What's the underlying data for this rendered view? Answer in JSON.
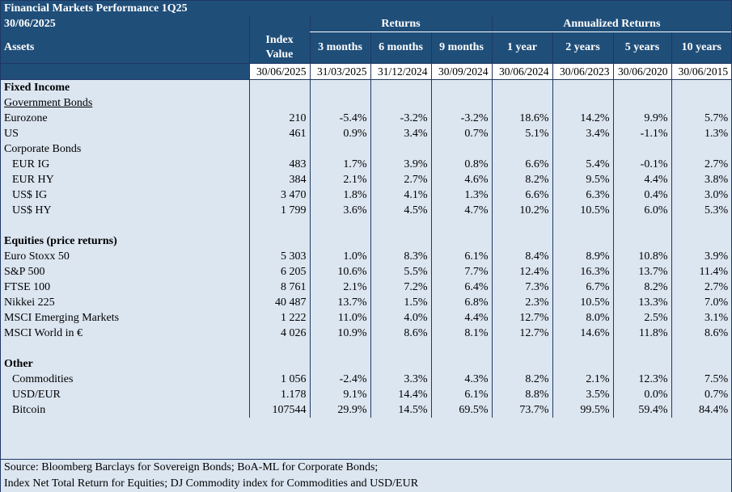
{
  "title": "Financial Markets Performance 1Q25",
  "date": "30/06/2025",
  "headers": {
    "assets": "Assets",
    "index_value_line1": "Index",
    "index_value_line2": "Value",
    "returns_group": "Returns",
    "annualized_group": "Annualized Returns",
    "periods": [
      "3 months",
      "6 months",
      "9 months",
      "1 year",
      "2 years",
      "5 years",
      "10 years"
    ],
    "dates": [
      "30/06/2025",
      "31/03/2025",
      "31/12/2024",
      "30/09/2024",
      "30/06/2024",
      "30/06/2023",
      "30/06/2020",
      "30/06/2015"
    ]
  },
  "rows": [
    {
      "type": "section",
      "label": "Fixed Income"
    },
    {
      "type": "subsection",
      "label": "Government Bonds"
    },
    {
      "type": "data",
      "label": "Eurozone",
      "indent": false,
      "values": [
        "210",
        "-5.4%",
        "-3.2%",
        "-3.2%",
        "18.6%",
        "14.2%",
        "9.9%",
        "5.7%"
      ]
    },
    {
      "type": "data",
      "label": "US",
      "indent": false,
      "values": [
        "461",
        "0.9%",
        "3.4%",
        "0.7%",
        "5.1%",
        "3.4%",
        "-1.1%",
        "1.3%"
      ]
    },
    {
      "type": "plain",
      "label": "Corporate Bonds"
    },
    {
      "type": "data",
      "label": "EUR IG",
      "indent": true,
      "values": [
        "483",
        "1.7%",
        "3.9%",
        "0.8%",
        "6.6%",
        "5.4%",
        "-0.1%",
        "2.7%"
      ]
    },
    {
      "type": "data",
      "label": "EUR HY",
      "indent": true,
      "values": [
        "384",
        "2.1%",
        "2.7%",
        "4.6%",
        "8.2%",
        "9.5%",
        "4.4%",
        "3.8%"
      ]
    },
    {
      "type": "data",
      "label": "US$ IG",
      "indent": true,
      "values": [
        "3 470",
        "1.8%",
        "4.1%",
        "1.3%",
        "6.6%",
        "6.3%",
        "0.4%",
        "3.0%"
      ]
    },
    {
      "type": "data",
      "label": "US$ HY",
      "indent": true,
      "values": [
        "1 799",
        "3.6%",
        "4.5%",
        "4.7%",
        "10.2%",
        "10.5%",
        "6.0%",
        "5.3%"
      ]
    },
    {
      "type": "blank"
    },
    {
      "type": "section",
      "label": "Equities (price returns)"
    },
    {
      "type": "data",
      "label": "Euro Stoxx 50",
      "indent": false,
      "values": [
        "5 303",
        "1.0%",
        "8.3%",
        "6.1%",
        "8.4%",
        "8.9%",
        "10.8%",
        "3.9%"
      ]
    },
    {
      "type": "data",
      "label": "S&P 500",
      "indent": false,
      "values": [
        "6 205",
        "10.6%",
        "5.5%",
        "7.7%",
        "12.4%",
        "16.3%",
        "13.7%",
        "11.4%"
      ]
    },
    {
      "type": "data",
      "label": "FTSE 100",
      "indent": false,
      "values": [
        "8 761",
        "2.1%",
        "7.2%",
        "6.4%",
        "7.3%",
        "6.7%",
        "8.2%",
        "2.7%"
      ]
    },
    {
      "type": "data",
      "label": "Nikkei 225",
      "indent": false,
      "values": [
        "40 487",
        "13.7%",
        "1.5%",
        "6.8%",
        "2.3%",
        "10.5%",
        "13.3%",
        "7.0%"
      ]
    },
    {
      "type": "data",
      "label": "MSCI Emerging Markets",
      "indent": false,
      "values": [
        "1 222",
        "11.0%",
        "4.0%",
        "4.4%",
        "12.7%",
        "8.0%",
        "2.5%",
        "3.1%"
      ]
    },
    {
      "type": "data",
      "label": "MSCI World in €",
      "indent": false,
      "values": [
        "4 026",
        "10.9%",
        "8.6%",
        "8.1%",
        "12.7%",
        "14.6%",
        "11.8%",
        "8.6%"
      ]
    },
    {
      "type": "blank"
    },
    {
      "type": "section",
      "label": "Other"
    },
    {
      "type": "data",
      "label": "Commodities",
      "indent": true,
      "values": [
        "1 056",
        "-2.4%",
        "3.3%",
        "4.3%",
        "8.2%",
        "2.1%",
        "12.3%",
        "7.5%"
      ]
    },
    {
      "type": "data",
      "label": "USD/EUR",
      "indent": true,
      "values": [
        "1.178",
        "9.1%",
        "14.4%",
        "6.1%",
        "8.8%",
        "3.5%",
        "0.0%",
        "0.7%"
      ]
    },
    {
      "type": "data",
      "label": "Bitcoin",
      "indent": true,
      "values": [
        "107544",
        "29.9%",
        "14.5%",
        "69.5%",
        "73.7%",
        "99.5%",
        "59.4%",
        "84.4%"
      ]
    }
  ],
  "footnote_line1": "Source: Bloomberg Barclays for Sovereign Bonds; BoA-ML for Corporate Bonds;",
  "footnote_line2": "Index Net Total Return for Equities; DJ Commodity index for Commodities and USD/EUR",
  "colors": {
    "header_bg": "#1f4e79",
    "body_bg": "#dce6f1",
    "border": "#1f3864"
  }
}
